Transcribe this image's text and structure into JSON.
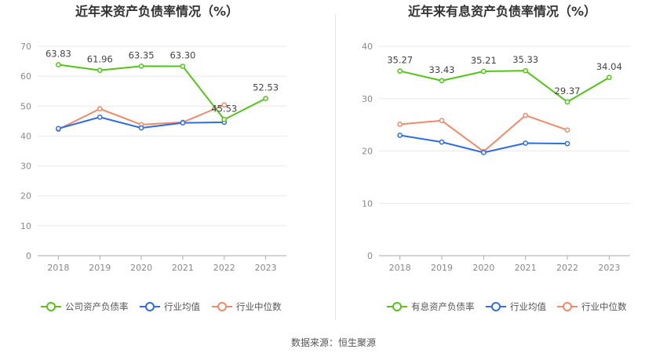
{
  "colors": {
    "green": "#52c41a",
    "blue": "#2f6fdc",
    "orange": "#f08a68",
    "grid": "#e8e8e8",
    "axis": "#aaaaaa",
    "text": "#888888",
    "title": "#333333"
  },
  "source_prefix": "数据来源：",
  "source_name": "恒生聚源",
  "chart_data": [
    {
      "type": "line",
      "title": "近年来资产负债率情况（%）",
      "categories": [
        "2018",
        "2019",
        "2020",
        "2021",
        "2022",
        "2023"
      ],
      "ylim": [
        0,
        70
      ],
      "yticks": [
        0,
        10,
        20,
        30,
        40,
        50,
        60,
        70
      ],
      "grid": true,
      "legend_position": "bottom",
      "series": [
        {
          "name": "公司资产负债率",
          "color": "#52c41a",
          "labels": true,
          "values": [
            63.83,
            61.96,
            63.35,
            63.3,
            45.53,
            52.53
          ]
        },
        {
          "name": "行业均值",
          "color": "#2f6fdc",
          "labels": false,
          "values": [
            42.5,
            46.3,
            42.7,
            44.4,
            44.6,
            null
          ]
        },
        {
          "name": "行业中位数",
          "color": "#f08a68",
          "labels": false,
          "values": [
            42.2,
            49.1,
            43.8,
            44.6,
            50.4,
            null
          ]
        }
      ]
    },
    {
      "type": "line",
      "title": "近年来有息资产负债率情况（%）",
      "categories": [
        "2018",
        "2019",
        "2020",
        "2021",
        "2022",
        "2023"
      ],
      "ylim": [
        0,
        40
      ],
      "yticks": [
        0,
        10,
        20,
        30,
        40
      ],
      "grid": true,
      "legend_position": "bottom",
      "series": [
        {
          "name": "有息资产负债率",
          "color": "#52c41a",
          "labels": true,
          "values": [
            35.27,
            33.43,
            35.21,
            35.33,
            29.37,
            34.04
          ]
        },
        {
          "name": "行业均值",
          "color": "#2f6fdc",
          "labels": false,
          "values": [
            23.0,
            21.7,
            19.7,
            21.5,
            21.4,
            null
          ]
        },
        {
          "name": "行业中位数",
          "color": "#f08a68",
          "labels": false,
          "values": [
            25.1,
            25.8,
            19.9,
            26.8,
            24.0,
            null
          ]
        }
      ]
    }
  ]
}
